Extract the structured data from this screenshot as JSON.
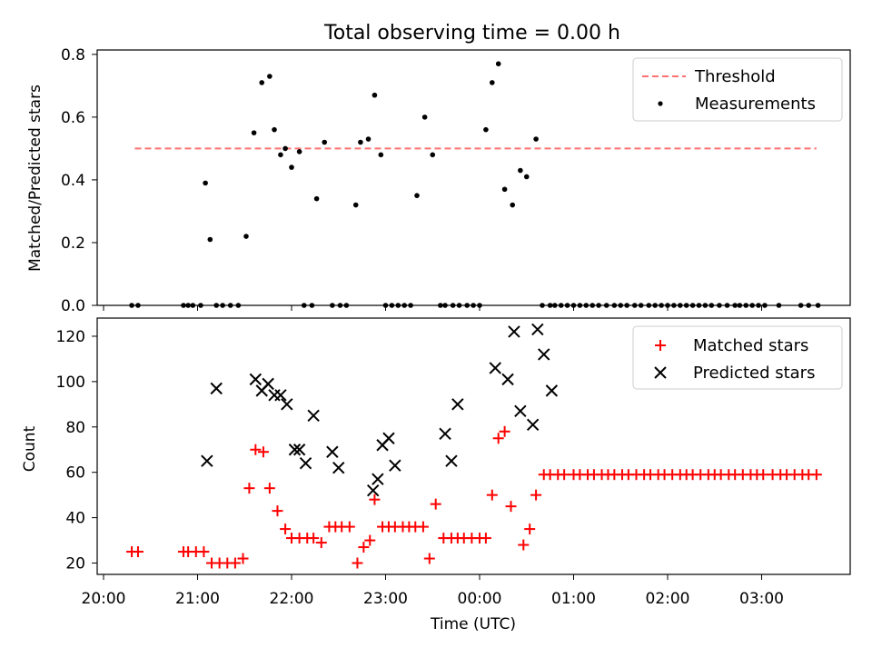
{
  "chart_data": [
    {
      "type": "scatter",
      "title": "Total observing time = 0.00 h",
      "ylabel": "Matched/Predicted stars",
      "ylim": [
        0,
        0.8
      ],
      "yticks": [
        "0.0",
        "0.2",
        "0.4",
        "0.6",
        "0.8"
      ],
      "threshold": {
        "name": "Threshold",
        "y": 0.5,
        "x_start": "20:20",
        "x_end": "03:35",
        "color": "#ff7070"
      },
      "legend": {
        "placement": "top-right"
      },
      "series": [
        {
          "name": "Measurements",
          "color": "#000000",
          "x": [
            "20:18",
            "20:22",
            "20:51",
            "20:54",
            "20:57",
            "21:02",
            "21:05",
            "21:08",
            "21:12",
            "21:16",
            "21:21",
            "21:26",
            "21:31",
            "21:36",
            "21:41",
            "21:46",
            "21:49",
            "21:53",
            "21:56",
            "22:00",
            "22:05",
            "22:08",
            "22:13",
            "22:16",
            "22:21",
            "22:26",
            "22:31",
            "22:35",
            "22:41",
            "22:44",
            "22:49",
            "22:53",
            "22:57",
            "23:00",
            "23:04",
            "23:08",
            "23:12",
            "23:16",
            "23:20",
            "23:25",
            "23:30",
            "23:35",
            "23:38",
            "23:43",
            "23:47",
            "23:52",
            "23:56",
            "00:00",
            "00:04",
            "00:08",
            "00:12",
            "00:16",
            "00:21",
            "00:26",
            "00:30",
            "00:36",
            "00:40",
            "00:45",
            "00:48",
            "00:52",
            "00:56",
            "01:00",
            "01:04",
            "01:08",
            "01:12",
            "01:16",
            "01:21",
            "01:26",
            "01:30",
            "01:34",
            "01:39",
            "01:43",
            "01:48",
            "01:52",
            "01:56",
            "02:00",
            "02:04",
            "02:08",
            "02:12",
            "02:16",
            "02:20",
            "02:24",
            "02:28",
            "02:33",
            "02:38",
            "02:43",
            "02:46",
            "02:50",
            "02:54",
            "02:58",
            "03:02",
            "03:11",
            "03:25",
            "03:30",
            "03:36"
          ],
          "y": [
            0.0,
            0.0,
            0.0,
            0.0,
            0.0,
            0.0,
            0.39,
            0.21,
            0.0,
            0.0,
            0.0,
            0.0,
            0.22,
            0.55,
            0.71,
            0.73,
            0.56,
            0.48,
            0.5,
            0.44,
            0.49,
            0.0,
            0.0,
            0.34,
            0.52,
            0.0,
            0.0,
            0.0,
            0.32,
            0.52,
            0.53,
            0.67,
            0.48,
            0.0,
            0.0,
            0.0,
            0.0,
            0.0,
            0.35,
            0.6,
            0.48,
            0.0,
            0.0,
            0.0,
            0.0,
            0.0,
            0.0,
            0.0,
            0.56,
            0.71,
            0.77,
            0.37,
            0.32,
            0.43,
            0.41,
            0.53,
            0.0,
            0.0,
            0.0,
            0.0,
            0.0,
            0.0,
            0.0,
            0.0,
            0.0,
            0.0,
            0.0,
            0.0,
            0.0,
            0.0,
            0.0,
            0.0,
            0.0,
            0.0,
            0.0,
            0.0,
            0.0,
            0.0,
            0.0,
            0.0,
            0.0,
            0.0,
            0.0,
            0.0,
            0.0,
            0.0,
            0.0,
            0.0,
            0.0,
            0.0,
            0.0,
            0.0,
            0.0,
            0.0,
            0.0
          ]
        }
      ]
    },
    {
      "type": "scatter",
      "xlabel": "Time (UTC)",
      "ylabel": "Count",
      "ylim": [
        15,
        128
      ],
      "yticks": [
        "20",
        "40",
        "60",
        "80",
        "100",
        "120"
      ],
      "xticks": [
        "20:00",
        "21:00",
        "22:00",
        "23:00",
        "00:00",
        "01:00",
        "02:00",
        "03:00"
      ],
      "legend": {
        "placement": "top-right"
      },
      "series": [
        {
          "name": "Matched stars",
          "marker": "plus",
          "color": "#ff0000",
          "x": [
            "20:18",
            "20:22",
            "20:51",
            "20:54",
            "20:59",
            "21:04",
            "21:09",
            "21:14",
            "21:19",
            "21:24",
            "21:29",
            "21:33",
            "21:37",
            "21:42",
            "21:46",
            "21:51",
            "21:56",
            "22:00",
            "22:05",
            "22:10",
            "22:14",
            "22:19",
            "22:24",
            "22:28",
            "22:32",
            "22:37",
            "22:42",
            "22:46",
            "22:50",
            "22:53",
            "22:58",
            "23:02",
            "23:06",
            "23:11",
            "23:15",
            "23:19",
            "23:24",
            "23:28",
            "23:32",
            "23:37",
            "23:42",
            "23:46",
            "23:50",
            "23:55",
            "00:00",
            "00:04",
            "00:08",
            "00:12",
            "00:16",
            "00:20",
            "00:28",
            "00:32",
            "00:36",
            "00:41",
            "00:45",
            "00:50",
            "00:54",
            "01:00",
            "01:04",
            "01:09",
            "01:13",
            "01:18",
            "01:22",
            "01:26",
            "01:31",
            "01:35",
            "01:40",
            "01:45",
            "01:49",
            "01:54",
            "01:58",
            "02:03",
            "02:08",
            "02:12",
            "02:16",
            "02:21",
            "02:26",
            "02:30",
            "02:34",
            "02:39",
            "02:43",
            "02:48",
            "02:53",
            "02:57",
            "03:01",
            "03:07",
            "03:12",
            "03:16",
            "03:21",
            "03:26",
            "03:30",
            "03:35"
          ],
          "y": [
            25,
            25,
            25,
            25,
            25,
            25,
            20,
            20,
            20,
            20,
            22,
            53,
            70,
            69,
            53,
            43,
            35,
            31,
            31,
            31,
            31,
            29,
            36,
            36,
            36,
            36,
            20,
            27,
            30,
            48,
            36,
            36,
            36,
            36,
            36,
            36,
            36,
            22,
            46,
            31,
            31,
            31,
            31,
            31,
            31,
            31,
            50,
            75,
            78,
            45,
            28,
            35,
            50,
            59,
            59,
            59,
            59,
            59,
            59,
            59,
            59,
            59,
            59,
            59,
            59,
            59,
            59,
            59,
            59,
            59,
            59,
            59,
            59,
            59,
            59,
            59,
            59,
            59,
            59,
            59,
            59,
            59,
            59,
            59,
            59,
            59,
            59,
            59,
            59,
            59,
            59,
            59
          ]
        },
        {
          "name": "Predicted stars",
          "marker": "x",
          "color": "#000000",
          "x": [
            "21:06",
            "21:12",
            "21:37",
            "21:41",
            "21:45",
            "21:49",
            "21:53",
            "21:57",
            "22:02",
            "22:05",
            "22:09",
            "22:14",
            "22:26",
            "22:30",
            "22:52",
            "22:55",
            "22:58",
            "23:02",
            "23:06",
            "23:38",
            "23:42",
            "23:46",
            "00:10",
            "00:18",
            "00:22",
            "00:26",
            "00:34",
            "00:37",
            "00:41",
            "00:46"
          ],
          "y": [
            65,
            97,
            101,
            96,
            99,
            94,
            94,
            90,
            70,
            70,
            64,
            85,
            69,
            62,
            52,
            57,
            72,
            75,
            63,
            77,
            65,
            90,
            106,
            101,
            122,
            87,
            81,
            123,
            112,
            96
          ]
        }
      ]
    }
  ]
}
